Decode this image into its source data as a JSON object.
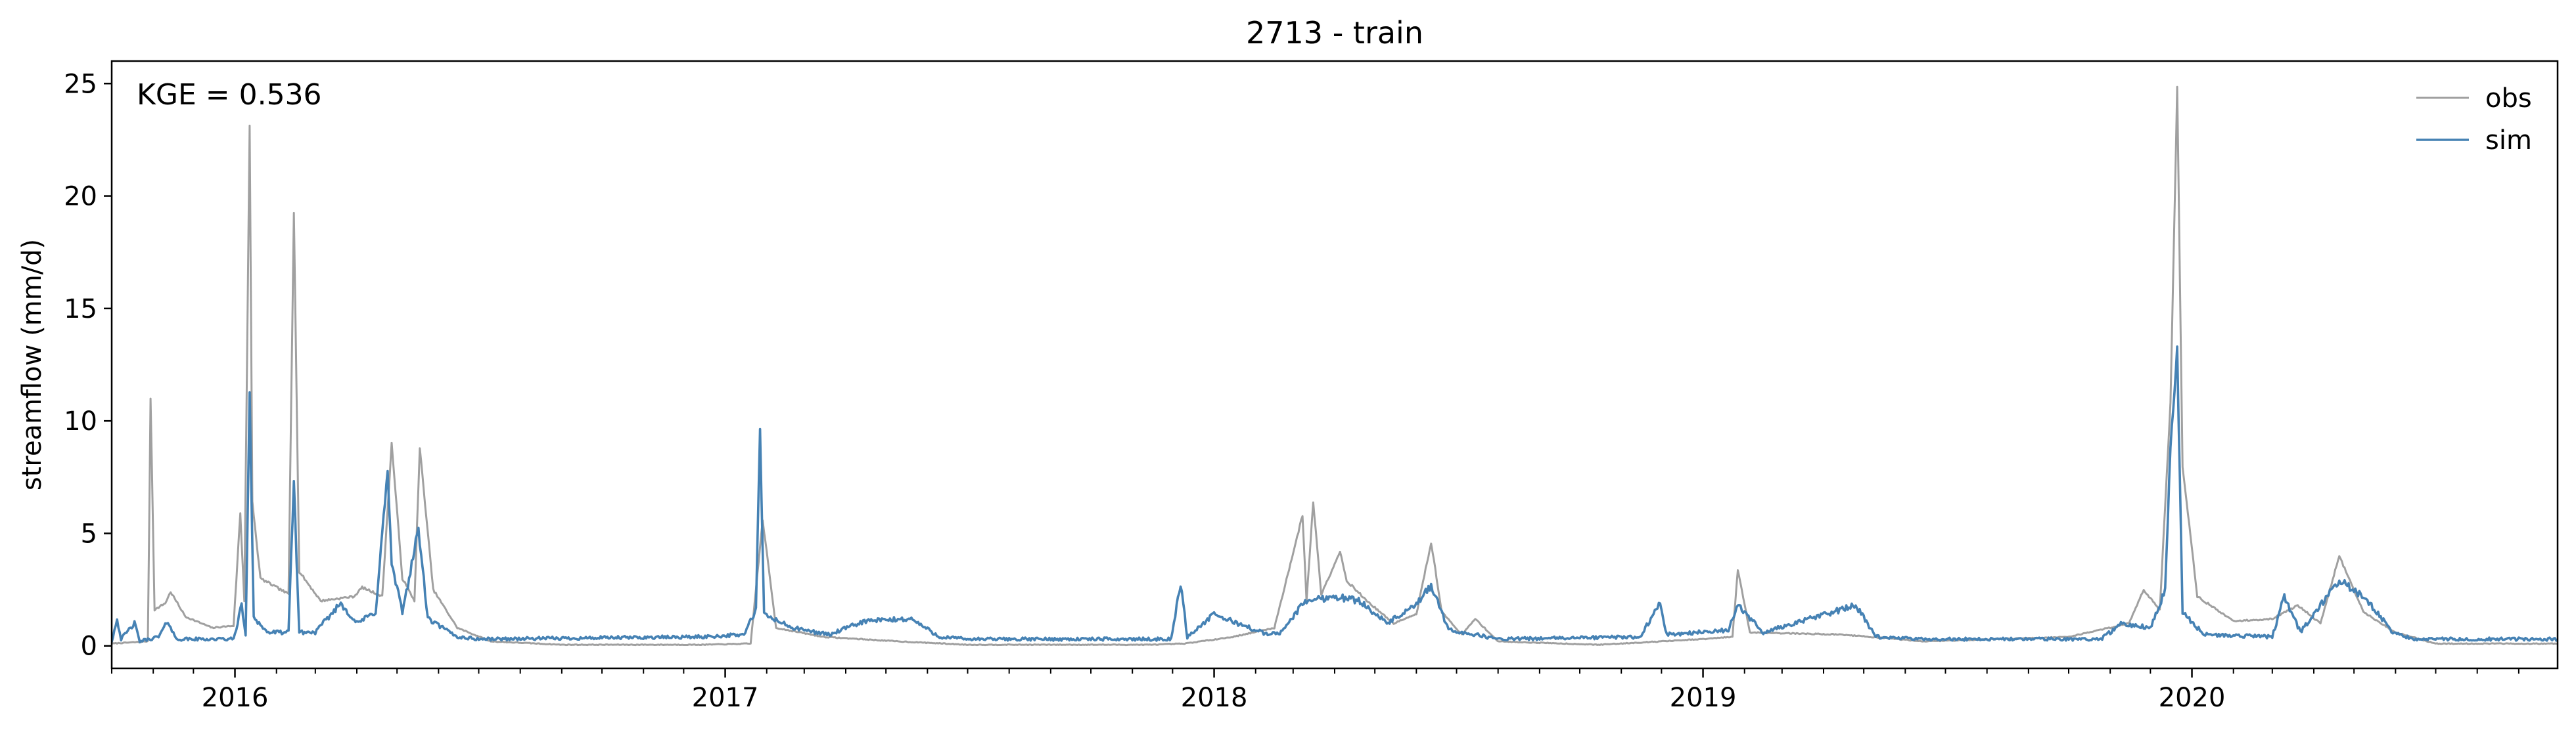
{
  "chart_data": {
    "type": "line",
    "title": "2713 - train",
    "xlabel": "",
    "ylabel": "streamflow (mm/d)",
    "annotation": "KGE = 0.536",
    "xlim": [
      "2015-10-01",
      "2020-09-30"
    ],
    "ylim": [
      -1,
      26
    ],
    "x_ticks": [
      "2016",
      "2017",
      "2018",
      "2019",
      "2020"
    ],
    "y_ticks": [
      0,
      5,
      10,
      15,
      20,
      25
    ],
    "grid": false,
    "legend": "top-right",
    "series": [
      {
        "name": "obs",
        "color": "#a0a0a0",
        "points": [
          [
            "2015-10-01",
            0.1
          ],
          [
            "2015-10-28",
            0.2
          ],
          [
            "2015-10-30",
            11.0
          ],
          [
            "2015-11-02",
            1.6
          ],
          [
            "2015-11-10",
            1.9
          ],
          [
            "2015-11-14",
            2.4
          ],
          [
            "2015-11-25",
            1.3
          ],
          [
            "2015-12-15",
            0.8
          ],
          [
            "2015-12-31",
            0.9
          ],
          [
            "2016-01-05",
            5.9
          ],
          [
            "2016-01-08",
            2.0
          ],
          [
            "2016-01-12",
            23.1
          ],
          [
            "2016-01-14",
            6.4
          ],
          [
            "2016-01-20",
            3.0
          ],
          [
            "2016-02-01",
            2.6
          ],
          [
            "2016-02-10",
            2.3
          ],
          [
            "2016-02-14",
            19.3
          ],
          [
            "2016-02-18",
            3.3
          ],
          [
            "2016-03-05",
            2.0
          ],
          [
            "2016-03-30",
            2.2
          ],
          [
            "2016-04-05",
            2.6
          ],
          [
            "2016-04-20",
            2.2
          ],
          [
            "2016-04-27",
            9.0
          ],
          [
            "2016-05-05",
            3.0
          ],
          [
            "2016-05-14",
            2.0
          ],
          [
            "2016-05-18",
            8.8
          ],
          [
            "2016-05-28",
            2.5
          ],
          [
            "2016-06-15",
            0.8
          ],
          [
            "2016-07-10",
            0.2
          ],
          [
            "2016-09-01",
            0.05
          ],
          [
            "2016-12-15",
            0.05
          ],
          [
            "2017-01-20",
            0.1
          ],
          [
            "2017-01-29",
            5.6
          ],
          [
            "2017-02-08",
            0.8
          ],
          [
            "2017-03-15",
            0.4
          ],
          [
            "2017-05-10",
            0.2
          ],
          [
            "2017-07-01",
            0.05
          ],
          [
            "2017-11-15",
            0.05
          ],
          [
            "2017-12-10",
            0.1
          ],
          [
            "2018-01-15",
            0.4
          ],
          [
            "2018-02-15",
            0.8
          ],
          [
            "2018-03-08",
            5.8
          ],
          [
            "2018-03-11",
            2.0
          ],
          [
            "2018-03-16",
            6.4
          ],
          [
            "2018-03-22",
            2.3
          ],
          [
            "2018-04-05",
            4.2
          ],
          [
            "2018-04-10",
            2.9
          ],
          [
            "2018-04-25",
            2.0
          ],
          [
            "2018-05-15",
            1.0
          ],
          [
            "2018-06-01",
            1.4
          ],
          [
            "2018-06-12",
            4.6
          ],
          [
            "2018-06-20",
            1.5
          ],
          [
            "2018-07-05",
            0.5
          ],
          [
            "2018-07-15",
            1.2
          ],
          [
            "2018-08-01",
            0.2
          ],
          [
            "2018-10-15",
            0.05
          ],
          [
            "2019-01-01",
            0.3
          ],
          [
            "2019-01-23",
            0.4
          ],
          [
            "2019-01-27",
            3.4
          ],
          [
            "2019-02-05",
            0.6
          ],
          [
            "2019-04-15",
            0.5
          ],
          [
            "2019-06-15",
            0.2
          ],
          [
            "2019-10-01",
            0.4
          ],
          [
            "2019-11-15",
            1.0
          ],
          [
            "2019-11-26",
            2.5
          ],
          [
            "2019-12-08",
            1.6
          ],
          [
            "2019-12-16",
            10.8
          ],
          [
            "2019-12-21",
            24.8
          ],
          [
            "2019-12-25",
            8.0
          ],
          [
            "2020-01-05",
            2.2
          ],
          [
            "2020-02-01",
            1.1
          ],
          [
            "2020-03-01",
            1.2
          ],
          [
            "2020-03-20",
            1.8
          ],
          [
            "2020-04-06",
            1.0
          ],
          [
            "2020-04-20",
            4.0
          ],
          [
            "2020-05-08",
            1.5
          ],
          [
            "2020-06-01",
            0.6
          ],
          [
            "2020-07-01",
            0.1
          ],
          [
            "2020-09-30",
            0.1
          ]
        ]
      },
      {
        "name": "sim",
        "color": "#4682b4",
        "points": [
          [
            "2015-10-01",
            0.2
          ],
          [
            "2015-10-05",
            1.2
          ],
          [
            "2015-10-08",
            0.3
          ],
          [
            "2015-10-18",
            1.0
          ],
          [
            "2015-10-22",
            0.2
          ],
          [
            "2015-11-05",
            0.4
          ],
          [
            "2015-11-12",
            1.1
          ],
          [
            "2015-11-18",
            0.3
          ],
          [
            "2015-12-10",
            0.3
          ],
          [
            "2015-12-31",
            0.3
          ],
          [
            "2016-01-06",
            1.8
          ],
          [
            "2016-01-09",
            0.5
          ],
          [
            "2016-01-12",
            11.1
          ],
          [
            "2016-01-15",
            1.3
          ],
          [
            "2016-01-25",
            0.6
          ],
          [
            "2016-02-10",
            0.6
          ],
          [
            "2016-02-14",
            7.3
          ],
          [
            "2016-02-18",
            0.6
          ],
          [
            "2016-03-01",
            0.6
          ],
          [
            "2016-03-20",
            1.9
          ],
          [
            "2016-04-01",
            1.0
          ],
          [
            "2016-04-15",
            1.5
          ],
          [
            "2016-04-24",
            7.8
          ],
          [
            "2016-04-27",
            3.6
          ],
          [
            "2016-05-05",
            1.5
          ],
          [
            "2016-05-17",
            5.2
          ],
          [
            "2016-05-24",
            1.2
          ],
          [
            "2016-06-15",
            0.4
          ],
          [
            "2016-07-01",
            0.3
          ],
          [
            "2016-12-15",
            0.4
          ],
          [
            "2017-01-15",
            0.5
          ],
          [
            "2017-01-24",
            1.6
          ],
          [
            "2017-01-27",
            9.6
          ],
          [
            "2017-01-30",
            1.4
          ],
          [
            "2017-02-20",
            0.8
          ],
          [
            "2017-03-20",
            0.5
          ],
          [
            "2017-04-15",
            1.1
          ],
          [
            "2017-05-20",
            1.2
          ],
          [
            "2017-06-10",
            0.4
          ],
          [
            "2017-07-01",
            0.3
          ],
          [
            "2017-11-30",
            0.3
          ],
          [
            "2017-12-07",
            2.8
          ],
          [
            "2017-12-12",
            0.4
          ],
          [
            "2018-01-01",
            1.4
          ],
          [
            "2018-02-10",
            0.5
          ],
          [
            "2018-02-20",
            0.6
          ],
          [
            "2018-03-10",
            2.0
          ],
          [
            "2018-04-01",
            2.2
          ],
          [
            "2018-04-20",
            2.0
          ],
          [
            "2018-05-10",
            1.0
          ],
          [
            "2018-06-01",
            1.8
          ],
          [
            "2018-06-12",
            2.7
          ],
          [
            "2018-06-25",
            0.7
          ],
          [
            "2018-07-15",
            0.5
          ],
          [
            "2018-08-01",
            0.3
          ],
          [
            "2018-11-15",
            0.4
          ],
          [
            "2018-11-30",
            1.9
          ],
          [
            "2018-12-05",
            0.5
          ],
          [
            "2019-01-20",
            0.7
          ],
          [
            "2019-01-27",
            1.8
          ],
          [
            "2019-02-15",
            0.6
          ],
          [
            "2019-04-25",
            1.8
          ],
          [
            "2019-05-10",
            0.4
          ],
          [
            "2019-06-10",
            0.3
          ],
          [
            "2019-10-25",
            0.3
          ],
          [
            "2019-11-10",
            1.0
          ],
          [
            "2019-12-01",
            0.8
          ],
          [
            "2019-12-12",
            2.5
          ],
          [
            "2019-12-16",
            8.9
          ],
          [
            "2019-12-21",
            13.2
          ],
          [
            "2019-12-25",
            1.5
          ],
          [
            "2020-01-10",
            0.5
          ],
          [
            "2020-03-01",
            0.4
          ],
          [
            "2020-03-10",
            2.2
          ],
          [
            "2020-03-22",
            0.6
          ],
          [
            "2020-04-20",
            2.9
          ],
          [
            "2020-05-10",
            2.1
          ],
          [
            "2020-05-30",
            0.6
          ],
          [
            "2020-06-15",
            0.3
          ],
          [
            "2020-09-30",
            0.3
          ]
        ]
      }
    ]
  }
}
